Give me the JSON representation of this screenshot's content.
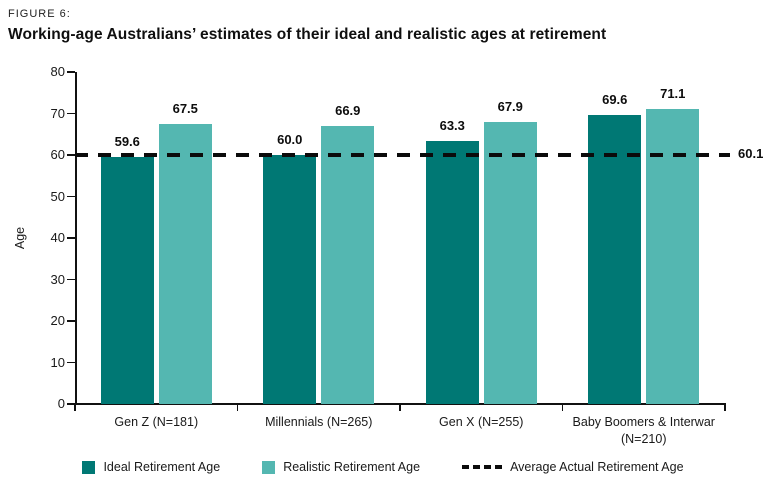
{
  "figure_label": "FIGURE 6:",
  "title": "Working-age Australians’ estimates of their ideal and realistic ages at retirement",
  "colors": {
    "ideal": "#007874",
    "realistic": "#54B7B1",
    "reference_line": "#0b0b0b",
    "axis": "#111111"
  },
  "chart_data": {
    "type": "bar",
    "title": "Working-age Australians’ estimates of their ideal and realistic ages at retirement",
    "categories": [
      "Gen Z (N=181)",
      "Millennials (N=265)",
      "Gen X (N=255)",
      "Baby Boomers & Interwar (N=210)"
    ],
    "series": [
      {
        "name": "Ideal Retirement Age",
        "color": "#007874",
        "values": [
          59.6,
          60.0,
          63.3,
          69.6
        ]
      },
      {
        "name": "Realistic Retirement Age",
        "color": "#54B7B1",
        "values": [
          67.5,
          66.9,
          67.9,
          71.1
        ]
      }
    ],
    "reference_line": {
      "name": "Average Actual Retirement Age",
      "value": 60.1,
      "value_label": "60.1"
    },
    "xlabel": "",
    "ylabel": "Age",
    "ylim": [
      0,
      80
    ],
    "yticks": [
      0,
      10,
      20,
      30,
      40,
      50,
      60,
      70,
      80
    ],
    "grid": false,
    "legend_position": "bottom",
    "value_label_decimals": 1
  }
}
